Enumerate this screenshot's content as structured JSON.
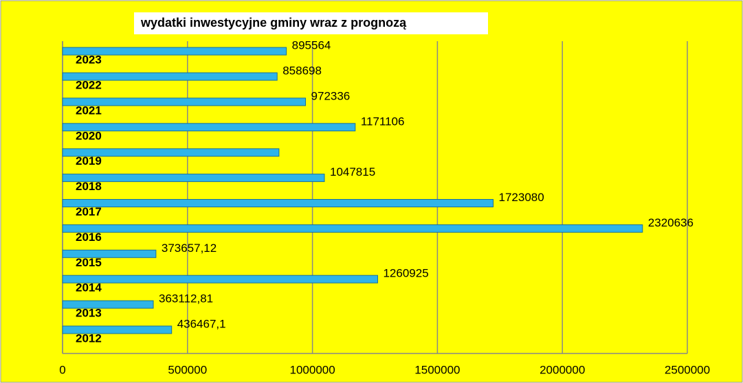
{
  "chart_data": {
    "type": "bar",
    "orientation": "horizontal",
    "title": "wydatki inwestycyjne gminy wraz z prognozą",
    "categories": [
      "2012",
      "2013",
      "2014",
      "2015",
      "2016",
      "2017",
      "2018",
      "2019",
      "2020",
      "2021",
      "2022",
      "2023"
    ],
    "values": [
      436467.1,
      363112.81,
      1260925,
      373657.12,
      2320636,
      1723080,
      1047815,
      866000,
      1171106,
      972336,
      858698,
      895564
    ],
    "value_labels": [
      "436467,1",
      "363112,81",
      "1260925",
      "373657,12",
      "2320636",
      "1723080",
      "1047815",
      null,
      "1171106",
      "972336",
      "858698",
      "895564"
    ],
    "color": "#2fb4e8",
    "xlim": [
      0,
      2500000
    ],
    "xticks": [
      0,
      500000,
      1000000,
      1500000,
      2000000,
      2500000
    ],
    "grid": true
  }
}
